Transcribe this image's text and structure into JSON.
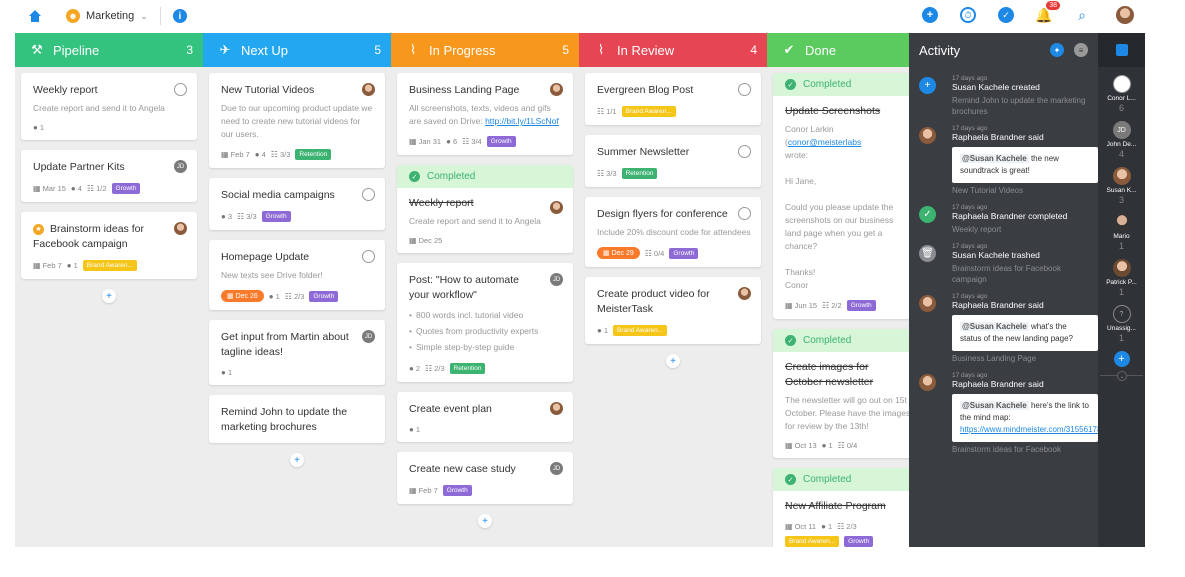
{
  "topbar": {
    "project_name": "Marketing",
    "notification_count": "38"
  },
  "columns": {
    "pipeline": {
      "title": "Pipeline",
      "count": "3",
      "color": "#33c37e",
      "cards": [
        {
          "title": "Weekly report",
          "desc": "Create report and send it to Angela",
          "comments": "1"
        },
        {
          "title": "Update Partner Kits",
          "date": "Mar 15",
          "comments": "4",
          "checks": "1/2",
          "tag": "Growth",
          "avatar": "JD"
        },
        {
          "title": "Brainstorm ideas for Facebook campaign",
          "date": "Feb 7",
          "comments": "1",
          "tag": "Brand Awaren..."
        }
      ]
    },
    "nextup": {
      "title": "Next Up",
      "count": "5",
      "color": "#22a7f0",
      "cards": [
        {
          "title": "New Tutorial Videos",
          "desc": "Due to our upcoming product update we need to create new tutorial videos for our users.",
          "date": "Feb 7",
          "comments": "4",
          "checks": "3/3",
          "tag": "Retention"
        },
        {
          "title": "Social media campaigns",
          "comments": "3",
          "checks": "3/3",
          "tag": "Growth"
        },
        {
          "title": "Homepage Update",
          "desc": "New texts see Drive folder!",
          "date": "Dec 26",
          "comments": "1",
          "checks": "2/3",
          "tag": "Growth"
        },
        {
          "title": "Get input from Martin about tagline ideas!",
          "comments": "1",
          "avatar": "JD"
        },
        {
          "title": "Remind John to update the marketing brochures"
        }
      ]
    },
    "inprogress": {
      "title": "In Progress",
      "count": "5",
      "color": "#f7981c",
      "cards": [
        {
          "title": "Business Landing Page",
          "desc": "All screenshots, texts, videos and gifs are saved on Drive: ",
          "link": "http://bit.ly/1LScNof",
          "date": "Jan 31",
          "comments": "6",
          "checks": "3/4",
          "tag": "Growth"
        },
        {
          "completed": "Completed",
          "title": "Weekly report",
          "desc": "Create report and send it to Angela",
          "date": "Dec 25"
        },
        {
          "title": "Post: \"How to automate your workflow\"",
          "bullets": [
            "800 words incl. tutorial video",
            "Quotes from productivity experts",
            "Simple step-by-step guide"
          ],
          "comments": "2",
          "checks": "2/3",
          "tag": "Retention",
          "avatar": "JD"
        },
        {
          "title": "Create event plan",
          "comments": "1"
        },
        {
          "title": "Create new case study",
          "date": "Feb 7",
          "tag": "Growth",
          "avatar": "JD"
        }
      ]
    },
    "inreview": {
      "title": "In Review",
      "count": "4",
      "color": "#e64553",
      "cards": [
        {
          "title": "Evergreen Blog Post",
          "checks": "1/1",
          "tag": "Brand Awaren..."
        },
        {
          "title": "Summer Newsletter",
          "checks": "3/3",
          "tag": "Retention"
        },
        {
          "title": "Design flyers for conference",
          "desc": "Include 20% discount code for attendees",
          "date": "Dec 29",
          "checks": "0/4",
          "tag": "Growth"
        },
        {
          "title": "Create product video for MeisterTask",
          "comments": "1",
          "tag": "Brand Awaren..."
        }
      ]
    },
    "done": {
      "title": "Done",
      "color": "#5ccb5f",
      "cards": [
        {
          "completed": "Completed",
          "title": "Update Screenshots",
          "desc_a": "Conor Larkin (",
          "link": "conor@meisterlabs",
          "desc_b": "wrote:",
          "desc_c": "Hi Jane,",
          "desc_d": "Could you please update the screenshots on our business land page when you get a chance?",
          "desc_e": "Thanks!",
          "desc_f": "Conor",
          "date": "Jun 15",
          "checks": "2/2",
          "tag": "Growth"
        },
        {
          "completed": "Completed",
          "title": "Create images for October newsletter",
          "desc": "The newsletter will go out on 15t October. Please have the images for review by the 13th!",
          "date": "Oct 13",
          "comments": "1",
          "checks": "0/4"
        },
        {
          "completed": "Completed",
          "title": "New Affiliate Program",
          "date": "Oct 11",
          "comments": "1",
          "checks": "2/3",
          "tag": "Brand Awaren...",
          "tag2": "Growth"
        }
      ]
    }
  },
  "activity": {
    "title": "Activity",
    "events": [
      {
        "time": "17 days ago",
        "who": "Susan Kachele created",
        "sub": "Remind John to update the marketing brochures"
      },
      {
        "time": "17 days ago",
        "who": "Raphaela Brandner said",
        "mention": "@Susan Kachele",
        "msg": " the new soundtrack is great!",
        "sub": "New Tutorial Videos"
      },
      {
        "time": "17 days ago",
        "who": "Raphaela Brandner completed",
        "sub": "Weekly report"
      },
      {
        "time": "17 days ago",
        "who": "Susan Kachele trashed",
        "sub": "Brainstorm ideas for Facebook campaign"
      },
      {
        "time": "17 days ago",
        "who": "Raphaela Brandner said",
        "mention": "@Susan Kachele",
        "msg": " what's the status of the new landing page?",
        "sub": "Business Landing Page"
      },
      {
        "time": "17 days ago",
        "who": "Raphaela Brandner said",
        "mention": "@Susan Kachele",
        "msg": " here's the link to the mind map:",
        "link": "https://www.mindmeister.com/315561787t=2Wi2r0J",
        "sub": "Brainstorm ideas for Facebook"
      }
    ]
  },
  "rail": {
    "people": [
      {
        "name": "Conor L...",
        "count": "6"
      },
      {
        "name": "John De...",
        "count": "4",
        "initials": "JD"
      },
      {
        "name": "Susan K...",
        "count": "3"
      },
      {
        "name": "Mario",
        "count": "1"
      },
      {
        "name": "Patrick P...",
        "count": "1"
      },
      {
        "name": "Unassig...",
        "count": "1",
        "initials": "?"
      }
    ]
  }
}
